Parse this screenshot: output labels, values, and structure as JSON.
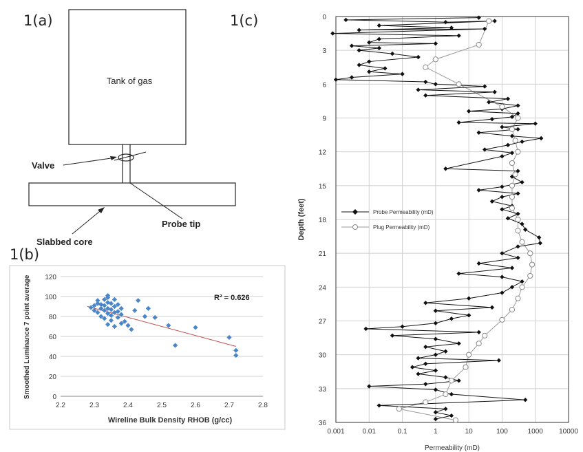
{
  "panel_labels": {
    "a": "1(a)",
    "b": "1(b)",
    "c": "1(c)"
  },
  "diagram": {
    "tank_label": "Tank of gas",
    "valve_label": "Valve",
    "probe_tip_label": "Probe tip",
    "slabbed_core_label": "Slabbed core"
  },
  "chart_data": [
    {
      "type": "scatter",
      "title": "",
      "xlabel": "Wireline Bulk Density RHOB (g/cc)",
      "ylabel": "Smoothed  Luminance 7 point average",
      "xlim": [
        2.2,
        2.8
      ],
      "ylim": [
        0,
        120
      ],
      "xticks": [
        "2.2",
        "2.3",
        "2.4",
        "2.5",
        "2.6",
        "2.7",
        "2.8"
      ],
      "yticks": [
        "0",
        "20",
        "40",
        "60",
        "80",
        "100",
        "120"
      ],
      "grid": true,
      "annotation": "R² = 0.626",
      "marker_color": "#4a86c8",
      "trendline_color": "#c0504d",
      "trendline": [
        [
          2.28,
          90
        ],
        [
          2.72,
          50
        ]
      ],
      "points": [
        [
          2.29,
          89
        ],
        [
          2.3,
          86
        ],
        [
          2.3,
          91
        ],
        [
          2.31,
          84
        ],
        [
          2.31,
          93
        ],
        [
          2.32,
          80
        ],
        [
          2.32,
          88
        ],
        [
          2.32,
          92
        ],
        [
          2.33,
          86
        ],
        [
          2.33,
          91
        ],
        [
          2.33,
          97
        ],
        [
          2.34,
          99
        ],
        [
          2.34,
          94
        ],
        [
          2.34,
          88
        ],
        [
          2.34,
          83
        ],
        [
          2.34,
          101
        ],
        [
          2.35,
          93
        ],
        [
          2.35,
          87
        ],
        [
          2.35,
          81
        ],
        [
          2.35,
          76
        ],
        [
          2.36,
          90
        ],
        [
          2.36,
          84
        ],
        [
          2.36,
          70
        ],
        [
          2.37,
          92
        ],
        [
          2.37,
          85
        ],
        [
          2.37,
          79
        ],
        [
          2.38,
          88
        ],
        [
          2.38,
          82
        ],
        [
          2.39,
          75
        ],
        [
          2.4,
          71
        ],
        [
          2.41,
          67
        ],
        [
          2.42,
          86
        ],
        [
          2.43,
          96
        ],
        [
          2.45,
          80
        ],
        [
          2.46,
          88
        ],
        [
          2.48,
          79
        ],
        [
          2.52,
          71
        ],
        [
          2.54,
          51
        ],
        [
          2.6,
          69
        ],
        [
          2.7,
          59
        ],
        [
          2.72,
          46
        ],
        [
          2.72,
          41
        ],
        [
          2.34,
          72
        ],
        [
          2.33,
          78
        ],
        [
          2.31,
          96
        ],
        [
          2.36,
          97
        ],
        [
          2.38,
          73
        ]
      ]
    },
    {
      "type": "line",
      "title": "",
      "xlabel": "Permeability (mD)",
      "ylabel": "Depth (feet)",
      "x_scale": "log",
      "xlim": [
        0.001,
        10000
      ],
      "ylim": [
        0,
        36
      ],
      "y_inverted": true,
      "xticks": [
        "0.001",
        "0.01",
        "0.1",
        "1",
        "10",
        "100",
        "1000",
        "10000"
      ],
      "yticks": [
        "0",
        "3",
        "6",
        "9",
        "12",
        "15",
        "18",
        "21",
        "24",
        "27",
        "30",
        "33",
        "36"
      ],
      "grid": true,
      "legend_position": "left-middle",
      "series": [
        {
          "name": "Probe Permeability (mD)",
          "color": "#111111",
          "marker": "diamond",
          "points": [
            [
              20,
              0.1
            ],
            [
              0.002,
              0.3
            ],
            [
              2,
              0.5
            ],
            [
              60,
              0.4
            ],
            [
              0.02,
              0.8
            ],
            [
              3,
              1.0
            ],
            [
              0.005,
              1.2
            ],
            [
              30,
              1.1
            ],
            [
              0.0008,
              1.5
            ],
            [
              5,
              1.7
            ],
            [
              0.02,
              2.0
            ],
            [
              0.01,
              2.3
            ],
            [
              1,
              2.4
            ],
            [
              0.003,
              2.6
            ],
            [
              0.02,
              2.8
            ],
            [
              0.005,
              3.0
            ],
            [
              0.05,
              3.3
            ],
            [
              0.3,
              3.6
            ],
            [
              0.01,
              4.0
            ],
            [
              0.005,
              4.3
            ],
            [
              0.03,
              4.6
            ],
            [
              0.01,
              4.9
            ],
            [
              0.1,
              5.1
            ],
            [
              0.003,
              5.4
            ],
            [
              0.001,
              5.6
            ],
            [
              0.5,
              5.8
            ],
            [
              1,
              6.0
            ],
            [
              30,
              6.2
            ],
            [
              0.3,
              6.5
            ],
            [
              60,
              6.7
            ],
            [
              0.5,
              7.0
            ],
            [
              150,
              7.3
            ],
            [
              40,
              7.6
            ],
            [
              300,
              7.9
            ],
            [
              100,
              8.2
            ],
            [
              10,
              8.4
            ],
            [
              300,
              8.6
            ],
            [
              200,
              8.9
            ],
            [
              50,
              9.1
            ],
            [
              5,
              9.4
            ],
            [
              1000,
              9.5
            ],
            [
              100,
              9.8
            ],
            [
              300,
              10.0
            ],
            [
              20,
              10.3
            ],
            [
              200,
              10.6
            ],
            [
              1500,
              10.8
            ],
            [
              400,
              11.1
            ],
            [
              150,
              11.4
            ],
            [
              30,
              11.8
            ],
            [
              200,
              12.1
            ],
            [
              100,
              12.4
            ],
            [
              2,
              13.5
            ],
            [
              300,
              13.7
            ],
            [
              200,
              14.2
            ],
            [
              400,
              14.7
            ],
            [
              100,
              15.1
            ],
            [
              20,
              15.4
            ],
            [
              300,
              15.7
            ],
            [
              100,
              16.0
            ],
            [
              50,
              16.4
            ],
            [
              200,
              16.8
            ],
            [
              100,
              17.1
            ],
            [
              300,
              17.5
            ],
            [
              150,
              17.9
            ],
            [
              400,
              18.4
            ],
            [
              500,
              18.9
            ],
            [
              1300,
              19.6
            ],
            [
              1400,
              20.1
            ],
            [
              300,
              20.4
            ],
            [
              100,
              21.0
            ],
            [
              300,
              21.4
            ],
            [
              20,
              21.9
            ],
            [
              200,
              22.3
            ],
            [
              5,
              22.8
            ],
            [
              100,
              23.1
            ],
            [
              400,
              23.5
            ],
            [
              200,
              24.0
            ],
            [
              100,
              24.5
            ],
            [
              10,
              25.0
            ],
            [
              0.5,
              25.4
            ],
            [
              50,
              25.8
            ],
            [
              1,
              26.1
            ],
            [
              10,
              26.5
            ],
            [
              3,
              26.8
            ],
            [
              1,
              27.2
            ],
            [
              0.1,
              27.5
            ],
            [
              0.008,
              27.7
            ],
            [
              20,
              28.0
            ],
            [
              0.05,
              28.3
            ],
            [
              1,
              28.6
            ],
            [
              5,
              29.0
            ],
            [
              0.5,
              29.3
            ],
            [
              2,
              29.7
            ],
            [
              1,
              30.0
            ],
            [
              0.3,
              30.3
            ],
            [
              80,
              30.5
            ],
            [
              0.5,
              30.8
            ],
            [
              0.2,
              31.1
            ],
            [
              1,
              31.4
            ],
            [
              0.3,
              31.7
            ],
            [
              2,
              32.0
            ],
            [
              5,
              32.3
            ],
            [
              0.5,
              32.6
            ],
            [
              0.01,
              32.8
            ],
            [
              1,
              33.1
            ],
            [
              3,
              33.5
            ],
            [
              500,
              34.0
            ],
            [
              0.02,
              34.5
            ],
            [
              2,
              34.8
            ],
            [
              1,
              35.1
            ],
            [
              3,
              35.4
            ],
            [
              1,
              35.7
            ]
          ]
        },
        {
          "name": "Plug Permeability (mD)",
          "color": "#999999",
          "marker": "circle",
          "points": [
            [
              40,
              0.4
            ],
            [
              20,
              2.5
            ],
            [
              1,
              3.8
            ],
            [
              0.5,
              4.5
            ],
            [
              5,
              6.0
            ],
            [
              100,
              8.0
            ],
            [
              300,
              9.0
            ],
            [
              200,
              10.0
            ],
            [
              250,
              11.0
            ],
            [
              300,
              12.0
            ],
            [
              200,
              13.0
            ],
            [
              250,
              14.0
            ],
            [
              200,
              15.0
            ],
            [
              200,
              16.0
            ],
            [
              200,
              17.0
            ],
            [
              300,
              18.0
            ],
            [
              300,
              19.0
            ],
            [
              400,
              20.0
            ],
            [
              700,
              21.0
            ],
            [
              800,
              22.0
            ],
            [
              700,
              23.0
            ],
            [
              400,
              24.0
            ],
            [
              300,
              25.0
            ],
            [
              200,
              26.0
            ],
            [
              100,
              26.9
            ],
            [
              30,
              28.3
            ],
            [
              20,
              29.0
            ],
            [
              10,
              30.0
            ],
            [
              8,
              31.1
            ],
            [
              3,
              32.3
            ],
            [
              2,
              33.5
            ],
            [
              0.5,
              34.2
            ],
            [
              0.08,
              34.8
            ],
            [
              4,
              35.8
            ]
          ]
        }
      ]
    }
  ]
}
